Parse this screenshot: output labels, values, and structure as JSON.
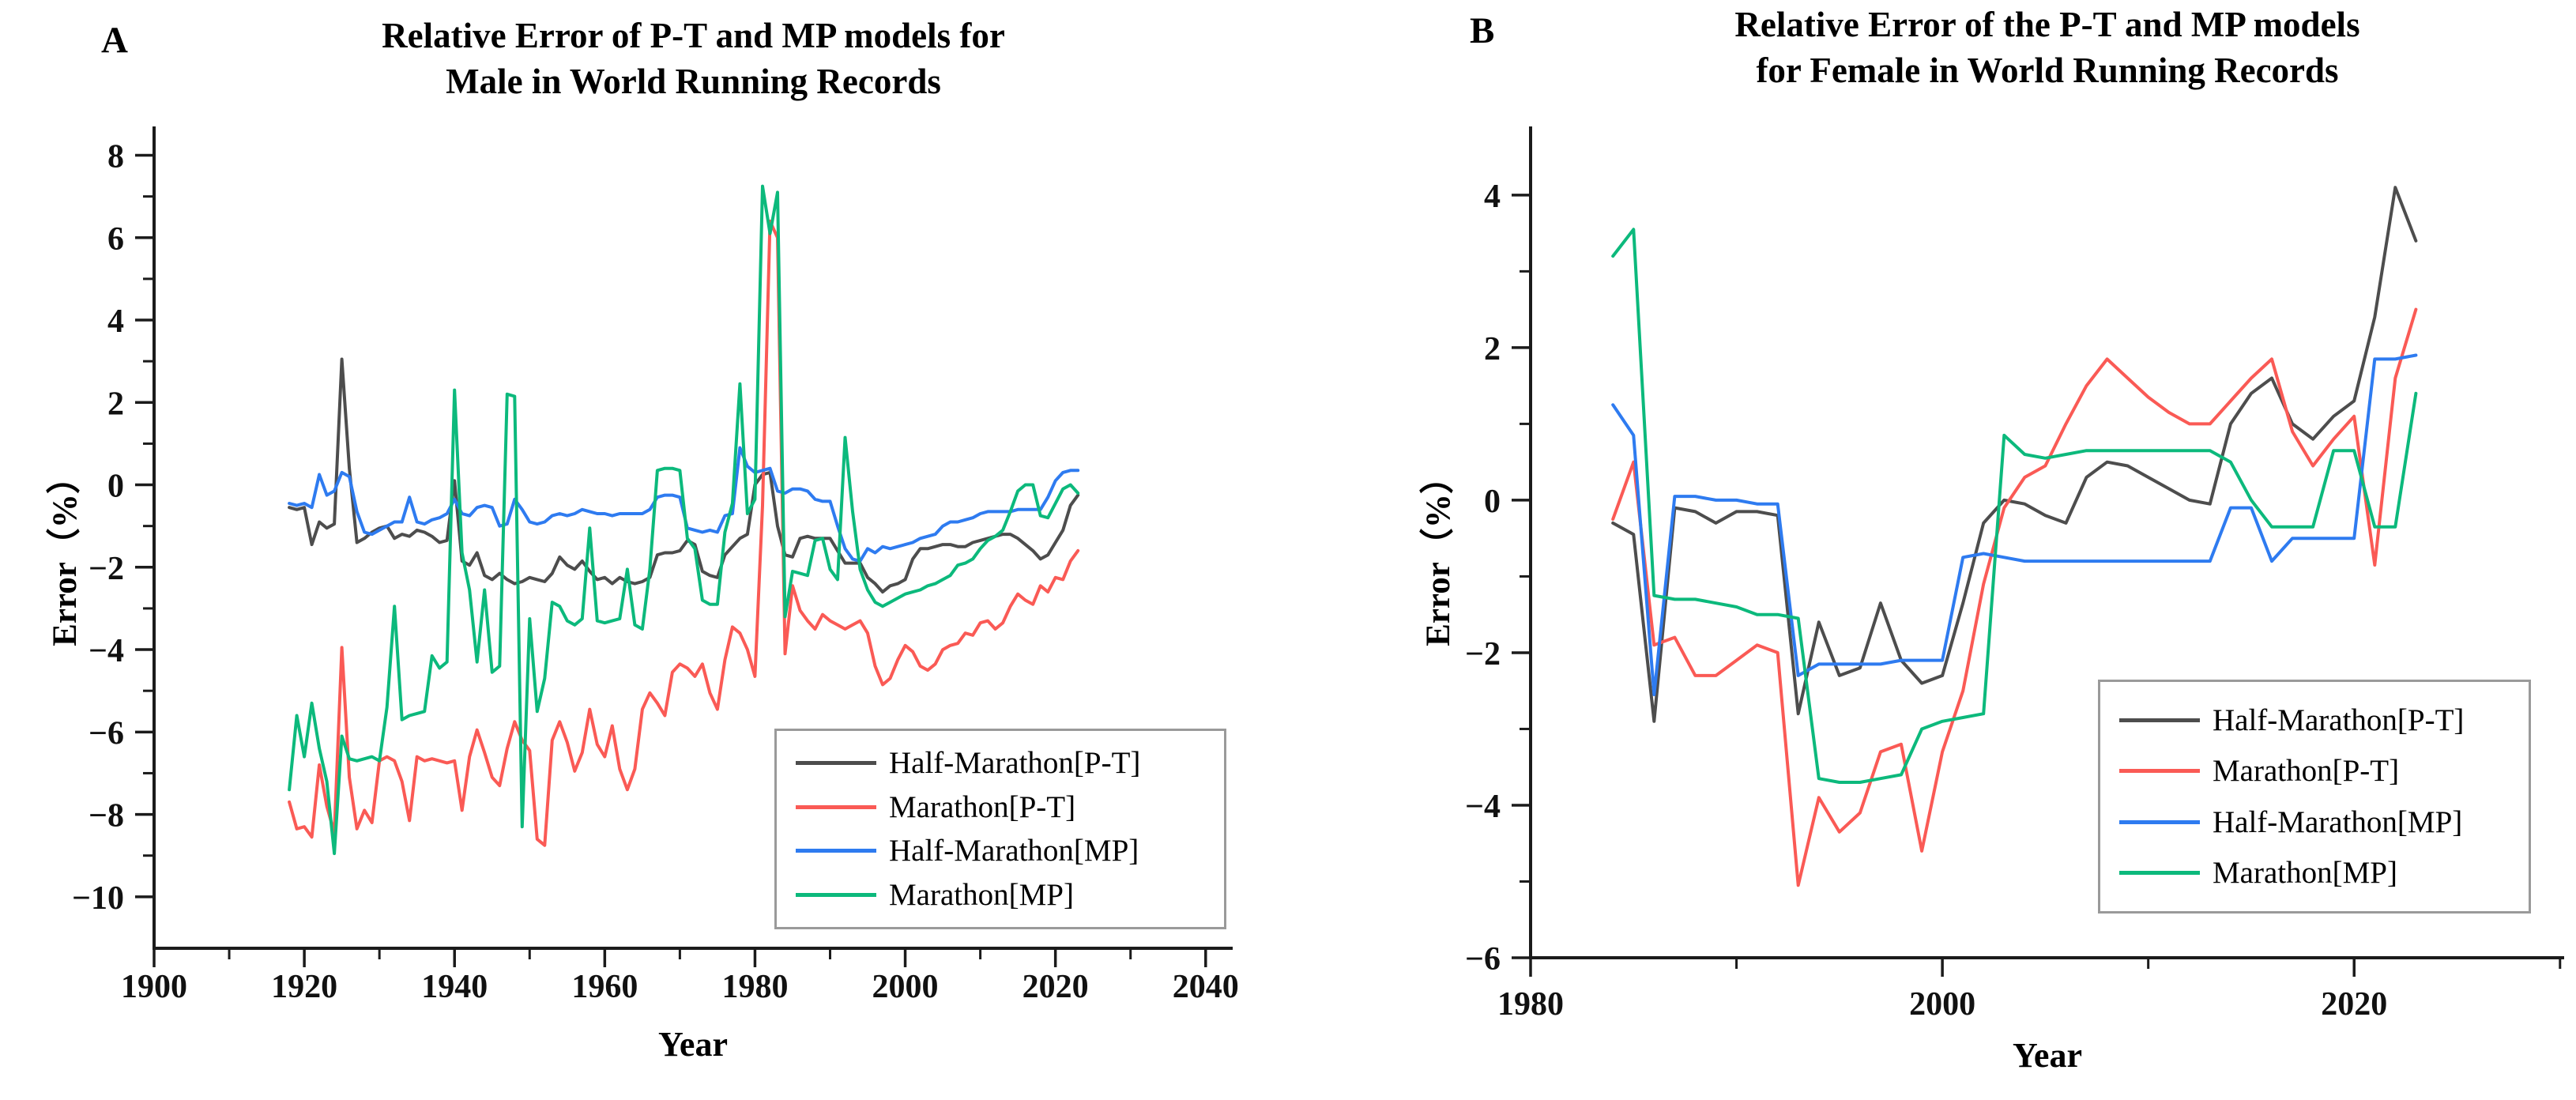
{
  "figure": {
    "panels": [
      {
        "label": "A",
        "title_line1": "Relative Error of P-T and MP models for",
        "title_line2": "Male in World Running Records"
      },
      {
        "label": "B",
        "title_line1": "Relative Error of the P-T and MP models",
        "title_line2": "for Female in World Running Records"
      }
    ]
  },
  "legend": {
    "items": [
      {
        "label": "Half-Marathon[P-T]",
        "color": "#4d4d4d"
      },
      {
        "label": "Marathon[P-T]",
        "color": "#fa5a55"
      },
      {
        "label": "Half-Marathon[MP]",
        "color": "#2e7bf0"
      },
      {
        "label": "Marathon[MP]",
        "color": "#0cb97c"
      }
    ]
  },
  "chart_data": [
    {
      "type": "line",
      "panel_label": "A",
      "title": "Relative Error of P-T and MP models for Male in World Running Records",
      "xlabel": "Year",
      "ylabel": "Error（%）",
      "xlim": [
        1900,
        2043.6
      ],
      "ylim": [
        -11.25,
        8.7
      ],
      "grid": false,
      "legend_position": "lower right",
      "xticks": {
        "major": [
          {
            "value": 1900,
            "label": "1900"
          },
          {
            "value": 1920,
            "label": "1920"
          },
          {
            "value": 1940,
            "label": "1940"
          },
          {
            "value": 1960,
            "label": "1960"
          },
          {
            "value": 1980,
            "label": "1980"
          },
          {
            "value": 2000,
            "label": "2000"
          },
          {
            "value": 2020,
            "label": "2020"
          },
          {
            "value": 2040,
            "label": "2040"
          }
        ],
        "minor": [
          1910,
          1930,
          1950,
          1970,
          1990,
          2010,
          2030
        ]
      },
      "yticks": {
        "major": [
          {
            "value": 8,
            "label": "8"
          },
          {
            "value": 6,
            "label": "6"
          },
          {
            "value": 4,
            "label": "4"
          },
          {
            "value": 2,
            "label": "2"
          },
          {
            "value": 0,
            "label": "0"
          },
          {
            "value": -2,
            "label": "−2"
          },
          {
            "value": -4,
            "label": "−4"
          },
          {
            "value": -6,
            "label": "−6"
          },
          {
            "value": -8,
            "label": "−8"
          },
          {
            "value": -10,
            "label": "−10"
          }
        ],
        "minor": [
          7,
          5,
          3,
          1,
          -1,
          -3,
          -5,
          -7,
          -9
        ]
      },
      "years": [
        1918,
        1919,
        1920,
        1921,
        1922,
        1923,
        1924,
        1925,
        1926,
        1927,
        1928,
        1929,
        1930,
        1931,
        1932,
        1933,
        1934,
        1935,
        1936,
        1937,
        1938,
        1939,
        1940,
        1941,
        1942,
        1943,
        1944,
        1945,
        1946,
        1947,
        1948,
        1949,
        1950,
        1951,
        1952,
        1953,
        1954,
        1955,
        1956,
        1957,
        1958,
        1959,
        1960,
        1961,
        1962,
        1963,
        1964,
        1965,
        1966,
        1967,
        1968,
        1969,
        1970,
        1971,
        1972,
        1973,
        1974,
        1975,
        1976,
        1977,
        1978,
        1979,
        1980,
        1981,
        1982,
        1983,
        1984,
        1985,
        1986,
        1987,
        1988,
        1989,
        1990,
        1991,
        1992,
        1993,
        1994,
        1995,
        1996,
        1997,
        1998,
        1999,
        2000,
        2001,
        2002,
        2003,
        2004,
        2005,
        2006,
        2007,
        2008,
        2009,
        2010,
        2011,
        2012,
        2013,
        2014,
        2015,
        2016,
        2017,
        2018,
        2019,
        2020,
        2021,
        2022,
        2023
      ],
      "series": [
        {
          "name": "Half-Marathon[P-T]",
          "color": "#4d4d4d",
          "values": [
            -0.55,
            -0.6,
            -0.55,
            -1.45,
            -0.9,
            -1.05,
            -0.95,
            3.05,
            0.4,
            -1.4,
            -1.3,
            -1.15,
            -1.05,
            -1.0,
            -1.3,
            -1.2,
            -1.25,
            -1.1,
            -1.15,
            -1.25,
            -1.4,
            -1.35,
            0.1,
            -1.85,
            -1.95,
            -1.65,
            -2.2,
            -2.3,
            -2.15,
            -2.3,
            -2.4,
            -2.35,
            -2.25,
            -2.3,
            -2.35,
            -2.15,
            -1.75,
            -1.95,
            -2.05,
            -1.85,
            -2.1,
            -2.3,
            -2.25,
            -2.4,
            -2.25,
            -2.35,
            -2.4,
            -2.35,
            -2.25,
            -1.7,
            -1.65,
            -1.65,
            -1.6,
            -1.35,
            -1.45,
            -2.1,
            -2.2,
            -2.25,
            -1.7,
            -1.5,
            -1.3,
            -1.2,
            0.0,
            0.25,
            0.3,
            -1.0,
            -1.7,
            -1.75,
            -1.3,
            -1.25,
            -1.3,
            -1.3,
            -1.3,
            -1.6,
            -1.9,
            -1.9,
            -1.9,
            -2.25,
            -2.4,
            -2.6,
            -2.45,
            -2.4,
            -2.3,
            -1.8,
            -1.55,
            -1.55,
            -1.5,
            -1.45,
            -1.45,
            -1.5,
            -1.5,
            -1.4,
            -1.35,
            -1.3,
            -1.25,
            -1.2,
            -1.2,
            -1.3,
            -1.45,
            -1.6,
            -1.8,
            -1.7,
            -1.4,
            -1.1,
            -0.5,
            -0.25
          ]
        },
        {
          "name": "Marathon[P-T]",
          "color": "#fa5a55",
          "values": [
            -7.7,
            -8.35,
            -8.3,
            -8.55,
            -6.8,
            -7.8,
            -8.45,
            -3.95,
            -7.1,
            -8.35,
            -7.9,
            -8.2,
            -6.7,
            -6.6,
            -6.7,
            -7.2,
            -8.15,
            -6.6,
            -6.7,
            -6.65,
            -6.7,
            -6.75,
            -6.7,
            -7.9,
            -6.6,
            -5.95,
            -6.5,
            -7.1,
            -7.3,
            -6.4,
            -5.75,
            -6.2,
            -6.45,
            -8.6,
            -8.75,
            -6.2,
            -5.75,
            -6.25,
            -6.95,
            -6.5,
            -5.45,
            -6.3,
            -6.6,
            -5.85,
            -6.9,
            -7.4,
            -6.9,
            -5.45,
            -5.05,
            -5.3,
            -5.6,
            -4.55,
            -4.35,
            -4.45,
            -4.65,
            -4.35,
            -5.05,
            -5.45,
            -4.25,
            -3.45,
            -3.6,
            -4.0,
            -4.65,
            -0.5,
            6.4,
            6.0,
            -4.1,
            -2.45,
            -3.05,
            -3.3,
            -3.5,
            -3.15,
            -3.3,
            -3.4,
            -3.5,
            -3.4,
            -3.3,
            -3.6,
            -4.4,
            -4.85,
            -4.7,
            -4.25,
            -3.9,
            -4.05,
            -4.4,
            -4.5,
            -4.35,
            -4.0,
            -3.9,
            -3.85,
            -3.6,
            -3.65,
            -3.35,
            -3.3,
            -3.5,
            -3.35,
            -2.95,
            -2.65,
            -2.8,
            -2.9,
            -2.45,
            -2.6,
            -2.25,
            -2.3,
            -1.85,
            -1.6
          ]
        },
        {
          "name": "Half-Marathon[MP]",
          "color": "#2e7bf0",
          "values": [
            -0.45,
            -0.5,
            -0.45,
            -0.55,
            0.25,
            -0.25,
            -0.15,
            0.3,
            0.2,
            -0.65,
            -1.15,
            -1.2,
            -1.1,
            -1.0,
            -0.9,
            -0.9,
            -0.3,
            -0.9,
            -0.95,
            -0.85,
            -0.8,
            -0.7,
            -0.35,
            -0.7,
            -0.75,
            -0.55,
            -0.5,
            -0.55,
            -1.0,
            -0.95,
            -0.35,
            -0.6,
            -0.9,
            -0.95,
            -0.9,
            -0.75,
            -0.7,
            -0.75,
            -0.7,
            -0.6,
            -0.65,
            -0.7,
            -0.7,
            -0.75,
            -0.7,
            -0.7,
            -0.7,
            -0.7,
            -0.6,
            -0.3,
            -0.25,
            -0.25,
            -0.3,
            -1.05,
            -1.1,
            -1.15,
            -1.1,
            -1.15,
            -0.75,
            -0.7,
            0.9,
            0.45,
            0.3,
            0.35,
            0.4,
            -0.15,
            -0.2,
            -0.1,
            -0.1,
            -0.15,
            -0.35,
            -0.4,
            -0.4,
            -1.0,
            -1.55,
            -1.8,
            -1.85,
            -1.55,
            -1.65,
            -1.5,
            -1.55,
            -1.5,
            -1.45,
            -1.4,
            -1.3,
            -1.25,
            -1.2,
            -1.0,
            -0.9,
            -0.9,
            -0.85,
            -0.8,
            -0.7,
            -0.65,
            -0.65,
            -0.65,
            -0.65,
            -0.6,
            -0.6,
            -0.6,
            -0.6,
            -0.3,
            0.1,
            0.3,
            0.35,
            0.35
          ]
        },
        {
          "name": "Marathon[MP]",
          "color": "#0cb97c",
          "values": [
            -7.4,
            -5.6,
            -6.6,
            -5.3,
            -6.4,
            -7.2,
            -8.95,
            -6.1,
            -6.65,
            -6.7,
            -6.65,
            -6.6,
            -6.7,
            -5.4,
            -2.95,
            -5.7,
            -5.6,
            -5.55,
            -5.5,
            -4.15,
            -4.45,
            -4.3,
            2.3,
            -1.65,
            -2.55,
            -4.3,
            -2.55,
            -4.55,
            -4.4,
            2.2,
            2.15,
            -8.3,
            -3.25,
            -5.5,
            -4.7,
            -2.85,
            -2.95,
            -3.3,
            -3.4,
            -3.25,
            -1.05,
            -3.3,
            -3.35,
            -3.3,
            -3.25,
            -2.05,
            -3.4,
            -3.5,
            -2.05,
            0.35,
            0.4,
            0.4,
            0.35,
            -1.3,
            -1.55,
            -2.8,
            -2.9,
            -2.9,
            -1.15,
            -0.45,
            2.45,
            -0.7,
            -0.35,
            7.25,
            6.1,
            7.1,
            -3.2,
            -2.1,
            -2.15,
            -2.2,
            -1.35,
            -1.3,
            -2.05,
            -2.3,
            1.15,
            -0.65,
            -2.05,
            -2.55,
            -2.85,
            -2.95,
            -2.85,
            -2.75,
            -2.65,
            -2.6,
            -2.55,
            -2.45,
            -2.4,
            -2.3,
            -2.2,
            -1.95,
            -1.9,
            -1.8,
            -1.55,
            -1.35,
            -1.25,
            -1.1,
            -0.65,
            -0.15,
            0.0,
            0.0,
            -0.75,
            -0.8,
            -0.45,
            -0.1,
            0.0,
            -0.2
          ]
        }
      ]
    },
    {
      "type": "line",
      "panel_label": "B",
      "title": "Relative Error of the P-T and MP models for Female in World Running Records",
      "xlabel": "Year",
      "ylabel": "Error（%）",
      "xlim": [
        1980,
        2030.2
      ],
      "ylim": [
        -6,
        4.9
      ],
      "grid": false,
      "legend_position": "lower right",
      "xticks": {
        "major": [
          {
            "value": 1980,
            "label": "1980"
          },
          {
            "value": 2000,
            "label": "2000"
          },
          {
            "value": 2020,
            "label": "2020"
          }
        ],
        "minor": [
          1990,
          2010,
          2030
        ]
      },
      "yticks": {
        "major": [
          {
            "value": 4,
            "label": "4"
          },
          {
            "value": 2,
            "label": "2"
          },
          {
            "value": 0,
            "label": "0"
          },
          {
            "value": -2,
            "label": "−2"
          },
          {
            "value": -4,
            "label": "−4"
          },
          {
            "value": -6,
            "label": "−6"
          }
        ],
        "minor": [
          3,
          1,
          -1,
          -3,
          -5
        ]
      },
      "years": [
        1984,
        1985,
        1986,
        1987,
        1988,
        1989,
        1990,
        1991,
        1992,
        1993,
        1994,
        1995,
        1996,
        1997,
        1998,
        1999,
        2000,
        2001,
        2002,
        2003,
        2004,
        2005,
        2006,
        2007,
        2008,
        2009,
        2010,
        2011,
        2012,
        2013,
        2014,
        2015,
        2016,
        2017,
        2018,
        2019,
        2020,
        2021,
        2022,
        2023
      ],
      "series": [
        {
          "name": "Half-Marathon[P-T]",
          "color": "#4d4d4d",
          "values": [
            -0.3,
            -0.45,
            -2.9,
            -0.1,
            -0.15,
            -0.3,
            -0.15,
            -0.15,
            -0.2,
            -2.8,
            -1.6,
            -2.3,
            -2.2,
            -1.35,
            -2.1,
            -2.4,
            -2.3,
            -1.35,
            -0.3,
            0.0,
            -0.05,
            -0.2,
            -0.3,
            0.3,
            0.5,
            0.45,
            0.3,
            0.15,
            0.0,
            -0.05,
            1.0,
            1.4,
            1.6,
            1.0,
            0.8,
            1.1,
            1.3,
            2.4,
            4.1,
            3.4
          ]
        },
        {
          "name": "Marathon[P-T]",
          "color": "#fa5a55",
          "values": [
            -0.25,
            0.5,
            -1.9,
            -1.8,
            -2.3,
            -2.3,
            -2.1,
            -1.9,
            -2.0,
            -5.05,
            -3.9,
            -4.35,
            -4.1,
            -3.3,
            -3.2,
            -4.6,
            -3.3,
            -2.5,
            -1.1,
            -0.1,
            0.3,
            0.45,
            1.0,
            1.5,
            1.85,
            1.6,
            1.35,
            1.15,
            1.0,
            1.0,
            1.3,
            1.6,
            1.85,
            0.9,
            0.45,
            0.8,
            1.1,
            -0.85,
            1.6,
            2.5
          ]
        },
        {
          "name": "Half-Marathon[MP]",
          "color": "#2e7bf0",
          "values": [
            1.25,
            0.85,
            -2.55,
            0.05,
            0.05,
            0.0,
            0.0,
            -0.05,
            -0.05,
            -2.3,
            -2.15,
            -2.15,
            -2.15,
            -2.15,
            -2.1,
            -2.1,
            -2.1,
            -0.75,
            -0.7,
            -0.75,
            -0.8,
            -0.8,
            -0.8,
            -0.8,
            -0.8,
            -0.8,
            -0.8,
            -0.8,
            -0.8,
            -0.8,
            -0.1,
            -0.1,
            -0.8,
            -0.5,
            -0.5,
            -0.5,
            -0.5,
            1.85,
            1.85,
            1.9
          ]
        },
        {
          "name": "Marathon[MP]",
          "color": "#0cb97c",
          "values": [
            3.2,
            3.55,
            -1.25,
            -1.3,
            -1.3,
            -1.35,
            -1.4,
            -1.5,
            -1.5,
            -1.55,
            -3.65,
            -3.7,
            -3.7,
            -3.65,
            -3.6,
            -3.0,
            -2.9,
            -2.85,
            -2.8,
            0.85,
            0.6,
            0.55,
            0.6,
            0.65,
            0.65,
            0.65,
            0.65,
            0.65,
            0.65,
            0.65,
            0.5,
            0.0,
            -0.35,
            -0.35,
            -0.35,
            0.65,
            0.65,
            -0.35,
            -0.35,
            1.4
          ]
        }
      ]
    }
  ]
}
